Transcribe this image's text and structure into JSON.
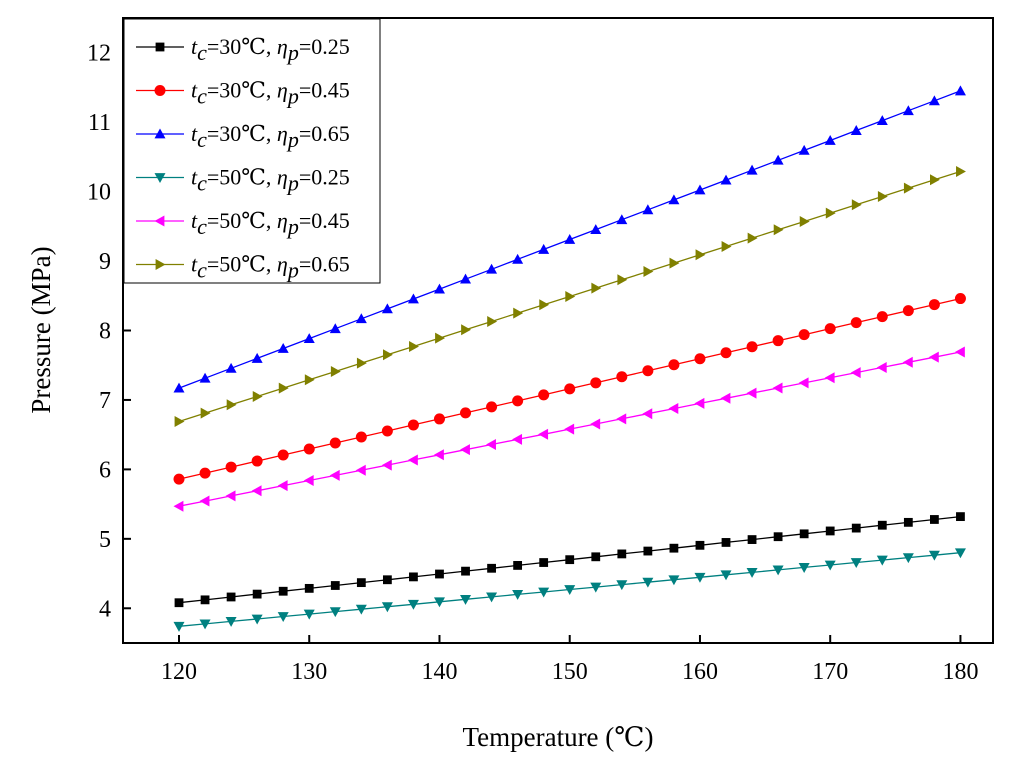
{
  "chart_data": {
    "type": "line",
    "title": "",
    "xlabel": "Temperature (℃)",
    "ylabel": "Pressure (MPa)",
    "xlim": [
      115.7,
      182.5
    ],
    "ylim": [
      3.5,
      12.5
    ],
    "xticks": [
      120,
      130,
      140,
      150,
      160,
      170,
      180
    ],
    "yticks": [
      4,
      5,
      6,
      7,
      8,
      9,
      10,
      11,
      12
    ],
    "grid": false,
    "legend_position": "top-left",
    "x": [
      120,
      122,
      124,
      126,
      128,
      130,
      132,
      134,
      136,
      138,
      140,
      142,
      144,
      146,
      148,
      150,
      152,
      154,
      156,
      158,
      160,
      162,
      164,
      166,
      168,
      170,
      172,
      174,
      176,
      178,
      180
    ],
    "series": [
      {
        "name": "tc=30℃, ηp=0.25",
        "label": {
          "t": "t",
          "tsub": "c",
          "eq1": "=30℃, ",
          "eta": "η",
          "esub": "p",
          "eq2": "=0.25"
        },
        "color": "#000000",
        "marker": "square",
        "start": 4.08,
        "end": 5.32
      },
      {
        "name": "tc=30℃, ηp=0.45",
        "label": {
          "t": "t",
          "tsub": "c",
          "eq1": "=30℃, ",
          "eta": "η",
          "esub": "p",
          "eq2": "=0.45"
        },
        "color": "#ff0000",
        "marker": "circle",
        "start": 5.86,
        "end": 8.46
      },
      {
        "name": "tc=30℃, ηp=0.65",
        "label": {
          "t": "t",
          "tsub": "c",
          "eq1": "=30℃, ",
          "eta": "η",
          "esub": "p",
          "eq2": "=0.65"
        },
        "color": "#0000ff",
        "marker": "triangle-up",
        "start": 7.17,
        "end": 11.45
      },
      {
        "name": "tc=50℃, ηp=0.25",
        "label": {
          "t": "t",
          "tsub": "c",
          "eq1": "=50℃, ",
          "eta": "η",
          "esub": "p",
          "eq2": "=0.25"
        },
        "color": "#008080",
        "marker": "triangle-down",
        "start": 3.74,
        "end": 4.8
      },
      {
        "name": "tc=50℃, ηp=0.45",
        "label": {
          "t": "t",
          "tsub": "c",
          "eq1": "=50℃, ",
          "eta": "η",
          "esub": "p",
          "eq2": "=0.45"
        },
        "color": "#ff00ff",
        "marker": "triangle-left",
        "start": 5.47,
        "end": 7.69
      },
      {
        "name": "tc=50℃, ηp=0.65",
        "label": {
          "t": "t",
          "tsub": "c",
          "eq1": "=50℃, ",
          "eta": "η",
          "esub": "p",
          "eq2": "=0.65"
        },
        "color": "#808000",
        "marker": "triangle-right",
        "start": 6.69,
        "end": 10.29
      }
    ]
  }
}
